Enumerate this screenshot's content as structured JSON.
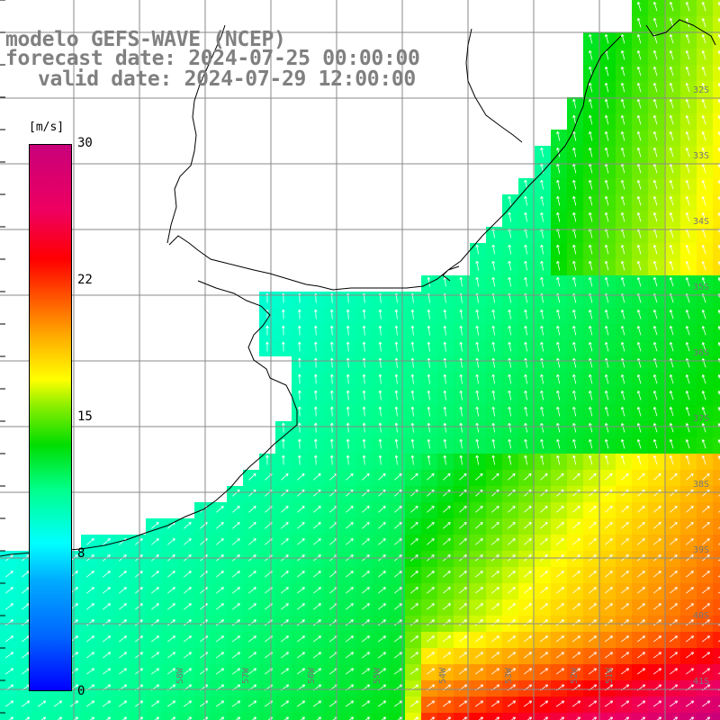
{
  "title": {
    "line1": "modelo GEFS-WAVE (NCEP)",
    "line2": "forecast date: 2024-07-25 00:00:00",
    "line3": "valid date: 2024-07-29 12:00:00"
  },
  "colorbar": {
    "unit": "[m/s]",
    "ticks": [
      {
        "value": 30,
        "label": "30"
      },
      {
        "value": 22,
        "label": "22"
      },
      {
        "value": 15,
        "label": "15"
      },
      {
        "value": 8,
        "label": "8"
      },
      {
        "value": 0,
        "label": "0"
      }
    ],
    "colors": [
      "#0000ff",
      "#00aaff",
      "#00ffff",
      "#00dd00",
      "#ffff00",
      "#ff5500",
      "#ff0000",
      "#c8007a"
    ]
  },
  "lat_labels": [
    "32S",
    "33S",
    "34S",
    "35S",
    "36S",
    "37S",
    "38S",
    "39S",
    "40S",
    "41S"
  ],
  "lon_labels": [
    "58W",
    "57W",
    "56W",
    "55W",
    "54W",
    "53W",
    "52W",
    "51W"
  ],
  "colors": {
    "land": "#ffffff",
    "coastline": "#000000",
    "grid": "#8a8a8a",
    "arrows": "#ffffff",
    "title": "#808080"
  }
}
